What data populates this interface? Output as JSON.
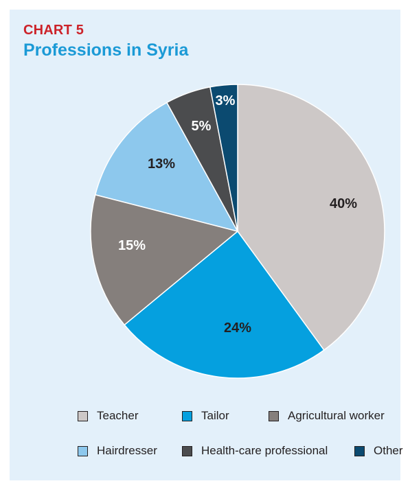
{
  "header": {
    "chart_number": "CHART 5",
    "title": "Professions in Syria"
  },
  "chart_data": {
    "type": "pie",
    "title": "Professions in Syria",
    "unit": "%",
    "slices": [
      {
        "name": "Teacher",
        "value": 40,
        "label": "40%",
        "color": "#cdc8c7",
        "label_color": "#231f20"
      },
      {
        "name": "Tailor",
        "value": 24,
        "label": "24%",
        "color": "#05a0df",
        "label_color": "#231f20"
      },
      {
        "name": "Agricultural worker",
        "value": 15,
        "label": "15%",
        "color": "#857f7c",
        "label_color": "#ffffff"
      },
      {
        "name": "Hairdresser",
        "value": 13,
        "label": "13%",
        "color": "#8dc8ed",
        "label_color": "#231f20"
      },
      {
        "name": "Health-care professional",
        "value": 5,
        "label": "5%",
        "color": "#4b4c4e",
        "label_color": "#ffffff"
      },
      {
        "name": "Other",
        "value": 3,
        "label": "3%",
        "color": "#0b4a70",
        "label_color": "#ffffff"
      }
    ],
    "legend_position": "bottom"
  },
  "legend": [
    {
      "label": "Teacher",
      "color": "#cdc8c7"
    },
    {
      "label": "Tailor",
      "color": "#05a0df"
    },
    {
      "label": "Agricultural worker",
      "color": "#857f7c"
    },
    {
      "label": "Hairdresser",
      "color": "#8dc8ed"
    },
    {
      "label": "Health-care professional",
      "color": "#4b4c4e"
    },
    {
      "label": "Other",
      "color": "#0b4a70"
    }
  ]
}
